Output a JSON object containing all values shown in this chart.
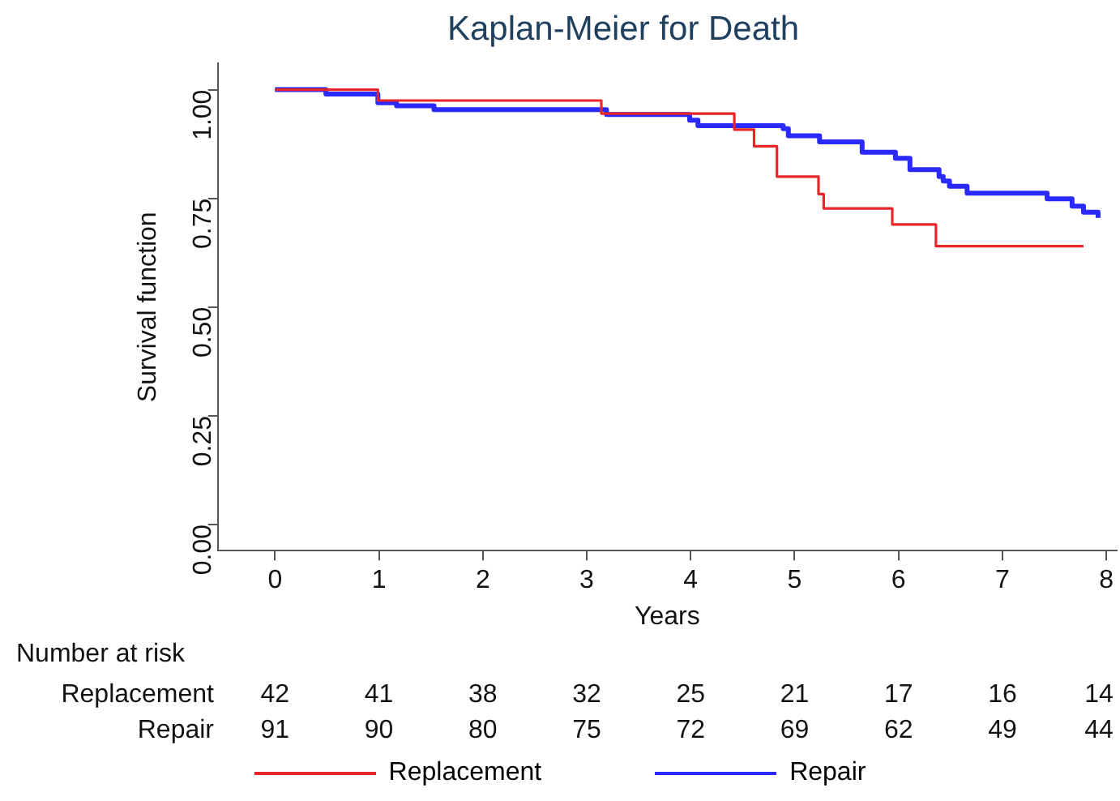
{
  "chart_data": {
    "type": "step",
    "title": "Kaplan-Meier for Death",
    "xlabel": "Years",
    "ylabel": "Survival function",
    "xlim": [
      -0.55,
      8.1
    ],
    "xticks": [
      0,
      1,
      2,
      3,
      4,
      5,
      6,
      7,
      8
    ],
    "ylim": [
      -0.06,
      1.06
    ],
    "yticks": [
      {
        "value": 0,
        "label": "0.00"
      },
      {
        "value": 0.25,
        "label": "0.25"
      },
      {
        "value": 0.5,
        "label": "0.50"
      },
      {
        "value": 0.75,
        "label": "0.75"
      },
      {
        "value": 1,
        "label": "1.00"
      }
    ],
    "grid": false,
    "legend": "bottom",
    "marker": "none",
    "line_style": "solid",
    "series": [
      {
        "name": "Replacement",
        "color": "#e8262a",
        "x": [
          0,
          0.99,
          3.14,
          4.42,
          4.61,
          4.83,
          5.23,
          5.28,
          5.94,
          6.36,
          7.78
        ],
        "values": [
          1,
          0.975,
          0.945,
          0.908,
          0.87,
          0.8,
          0.76,
          0.727,
          0.69,
          0.64,
          0.64
        ]
      },
      {
        "name": "Repair",
        "color": "#2a2aff",
        "x": [
          0,
          0.49,
          0.99,
          1.17,
          1.53,
          3.19,
          3.99,
          4.07,
          4.89,
          4.94,
          5.24,
          5.65,
          5.97,
          6.11,
          6.39,
          6.43,
          6.49,
          6.66,
          7.43,
          7.67,
          7.78,
          7.92
        ],
        "values": [
          1,
          0.99,
          0.97,
          0.963,
          0.954,
          0.943,
          0.93,
          0.917,
          0.91,
          0.894,
          0.88,
          0.856,
          0.842,
          0.816,
          0.8,
          0.79,
          0.778,
          0.762,
          0.749,
          0.732,
          0.718,
          0.705
        ]
      }
    ],
    "annotations": [
      "Number at risk",
      "Replacement",
      "42",
      "41",
      "38",
      "32",
      "25",
      "21",
      "17",
      "16",
      "14",
      "Repair",
      "91",
      "90",
      "80",
      "75",
      "72",
      "69",
      "62",
      "49",
      "44"
    ]
  }
}
